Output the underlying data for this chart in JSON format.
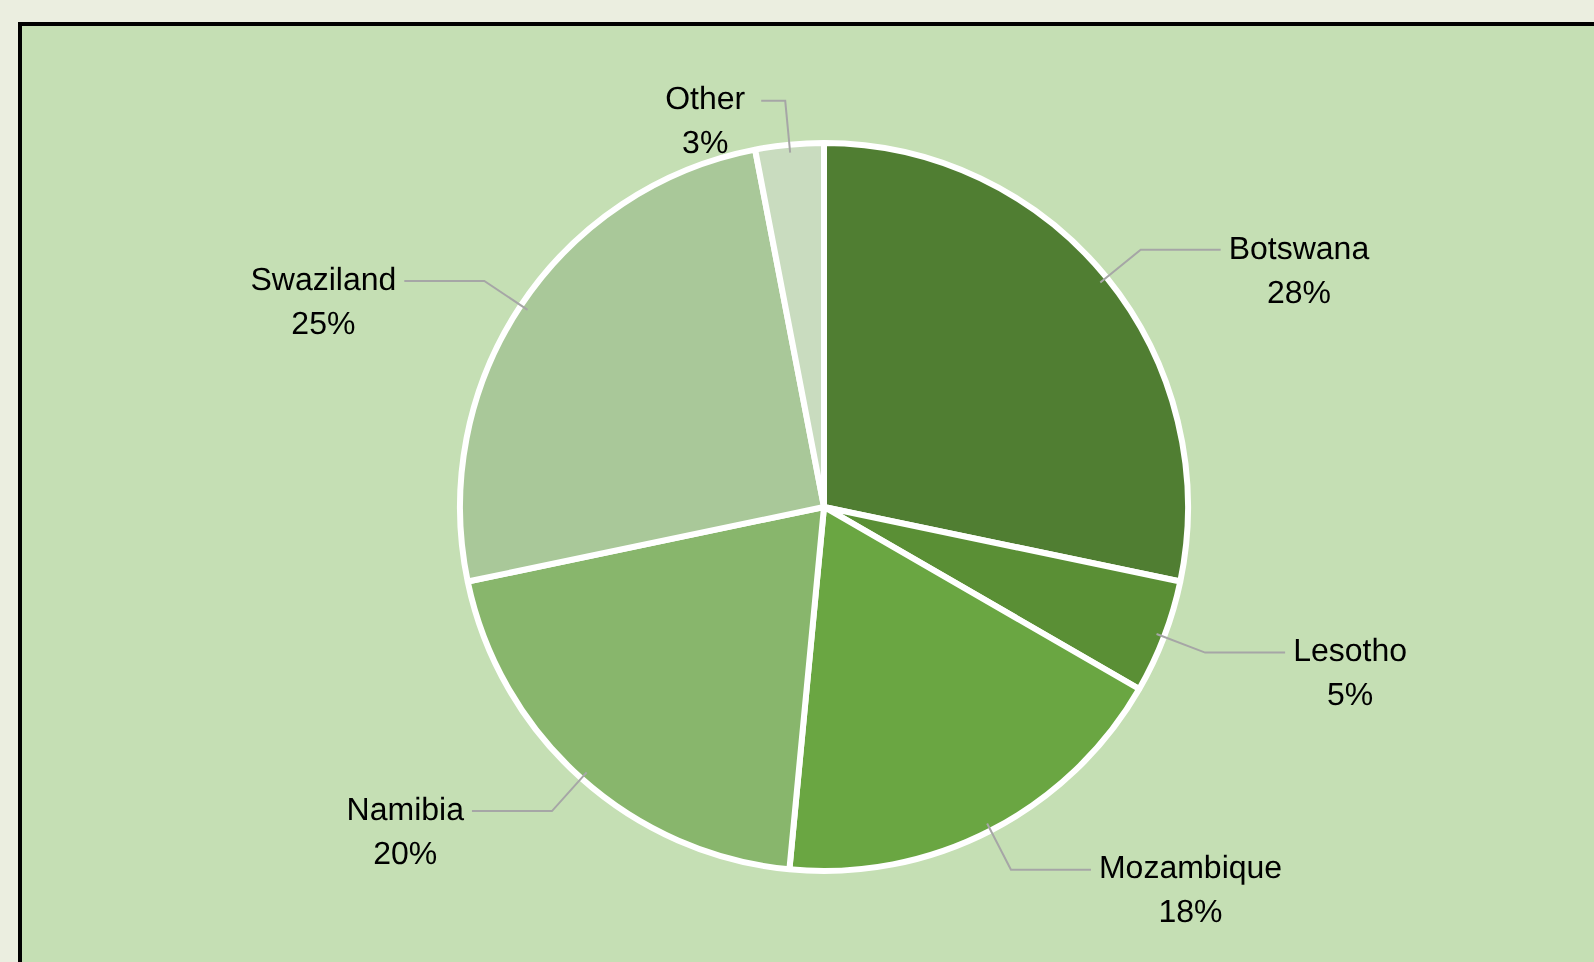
{
  "chart_data": {
    "type": "pie",
    "categories": [
      "Botswana",
      "Lesotho",
      "Mozambique",
      "Namibia",
      "Swaziland",
      "Other"
    ],
    "values": [
      28,
      5,
      18,
      20,
      25,
      3
    ],
    "value_labels": [
      "28%",
      "5%",
      "18%",
      "20%",
      "25%",
      "3%"
    ],
    "colors": [
      "#507e32",
      "#5a8f35",
      "#6aa642",
      "#88b66c",
      "#a9c899",
      "#c9dcbf"
    ],
    "legend": false
  }
}
